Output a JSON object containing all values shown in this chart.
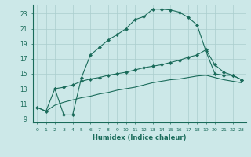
{
  "xlabel": "Humidex (Indice chaleur)",
  "bg_color": "#cce8e8",
  "line_color": "#1a6b5a",
  "grid_color": "#aacece",
  "xlim": [
    -0.5,
    23.5
  ],
  "ylim": [
    8.5,
    24.2
  ],
  "xticks": [
    0,
    1,
    2,
    3,
    4,
    5,
    6,
    7,
    8,
    9,
    10,
    11,
    12,
    13,
    14,
    15,
    16,
    17,
    18,
    19,
    20,
    21,
    22,
    23
  ],
  "yticks": [
    9,
    11,
    13,
    15,
    17,
    19,
    21,
    23
  ],
  "line1_x": [
    0,
    1,
    2,
    3,
    4,
    5,
    6,
    7,
    8,
    9,
    10,
    11,
    12,
    13,
    14,
    15,
    16,
    17,
    18,
    19,
    20,
    21,
    22,
    23
  ],
  "line1_y": [
    10.5,
    10.0,
    13.0,
    9.5,
    9.5,
    14.5,
    17.5,
    18.5,
    19.5,
    20.2,
    21.0,
    22.2,
    22.6,
    23.6,
    23.6,
    23.5,
    23.2,
    22.5,
    21.5,
    18.0,
    15.0,
    14.8,
    14.8,
    14.2
  ],
  "line2_x": [
    2,
    3,
    4,
    5,
    6,
    7,
    8,
    9,
    10,
    11,
    12,
    13,
    14,
    15,
    16,
    17,
    18,
    19,
    20,
    21,
    22,
    23
  ],
  "line2_y": [
    13.0,
    13.2,
    13.5,
    14.0,
    14.3,
    14.5,
    14.8,
    15.0,
    15.2,
    15.5,
    15.8,
    16.0,
    16.2,
    16.5,
    16.8,
    17.2,
    17.5,
    18.2,
    16.2,
    15.2,
    14.8,
    14.2
  ],
  "line3_x": [
    0,
    1,
    2,
    3,
    4,
    5,
    6,
    7,
    8,
    9,
    10,
    11,
    12,
    13,
    14,
    15,
    16,
    17,
    18,
    19,
    20,
    21,
    22,
    23
  ],
  "line3_y": [
    10.5,
    10.0,
    10.8,
    11.2,
    11.5,
    11.8,
    12.0,
    12.3,
    12.5,
    12.8,
    13.0,
    13.2,
    13.5,
    13.8,
    14.0,
    14.2,
    14.3,
    14.5,
    14.7,
    14.8,
    14.5,
    14.2,
    14.0,
    13.8
  ]
}
